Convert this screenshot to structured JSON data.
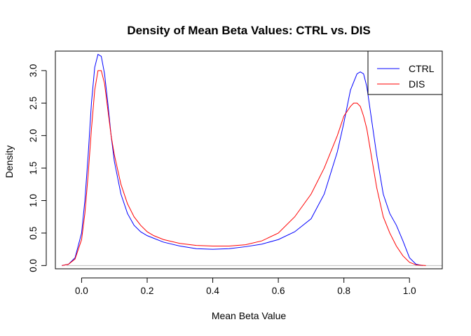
{
  "chart_data": {
    "type": "line",
    "title": "Density of Mean Beta Values: CTRL vs. DIS",
    "xlabel": "Mean Beta Value",
    "ylabel": "Density",
    "xlim": [
      -0.08,
      1.1
    ],
    "ylim": [
      -0.05,
      3.3
    ],
    "xticks": [
      0.0,
      0.2,
      0.4,
      0.6,
      0.8,
      1.0
    ],
    "xtick_labels": [
      "0.0",
      "0.2",
      "0.4",
      "0.6",
      "0.8",
      "1.0"
    ],
    "yticks": [
      0.0,
      0.5,
      1.0,
      1.5,
      2.0,
      2.5,
      3.0
    ],
    "ytick_labels": [
      "0.0",
      "0.5",
      "1.0",
      "1.5",
      "2.0",
      "2.5",
      "3.0"
    ],
    "grid": false,
    "baseline": {
      "y": 0,
      "color": "#bebebe"
    },
    "legend": {
      "position": "top-right"
    },
    "series": [
      {
        "name": "CTRL",
        "color": "#0000ff",
        "x": [
          -0.06,
          -0.04,
          -0.02,
          0.0,
          0.01,
          0.02,
          0.03,
          0.04,
          0.05,
          0.06,
          0.07,
          0.08,
          0.09,
          0.1,
          0.12,
          0.14,
          0.16,
          0.18,
          0.2,
          0.22,
          0.25,
          0.3,
          0.35,
          0.4,
          0.45,
          0.5,
          0.55,
          0.6,
          0.65,
          0.7,
          0.74,
          0.78,
          0.8,
          0.82,
          0.84,
          0.85,
          0.86,
          0.87,
          0.88,
          0.9,
          0.92,
          0.94,
          0.96,
          0.98,
          1.0,
          1.02,
          1.04
        ],
        "y": [
          0.0,
          0.02,
          0.12,
          0.5,
          1.0,
          1.7,
          2.5,
          3.05,
          3.25,
          3.22,
          2.95,
          2.5,
          2.0,
          1.6,
          1.1,
          0.8,
          0.62,
          0.52,
          0.46,
          0.42,
          0.36,
          0.3,
          0.26,
          0.25,
          0.26,
          0.29,
          0.33,
          0.4,
          0.52,
          0.72,
          1.1,
          1.75,
          2.2,
          2.7,
          2.95,
          2.98,
          2.95,
          2.75,
          2.4,
          1.7,
          1.1,
          0.8,
          0.62,
          0.38,
          0.12,
          0.02,
          0.0
        ]
      },
      {
        "name": "DIS",
        "color": "#ff0000",
        "x": [
          -0.06,
          -0.04,
          -0.02,
          0.0,
          0.01,
          0.02,
          0.03,
          0.04,
          0.05,
          0.06,
          0.07,
          0.08,
          0.09,
          0.1,
          0.12,
          0.14,
          0.16,
          0.18,
          0.2,
          0.22,
          0.25,
          0.3,
          0.35,
          0.4,
          0.45,
          0.5,
          0.55,
          0.6,
          0.65,
          0.7,
          0.74,
          0.78,
          0.8,
          0.82,
          0.83,
          0.84,
          0.85,
          0.86,
          0.87,
          0.88,
          0.9,
          0.92,
          0.94,
          0.96,
          0.98,
          1.0,
          1.02,
          1.05
        ],
        "y": [
          0.0,
          0.02,
          0.1,
          0.4,
          0.8,
          1.4,
          2.1,
          2.7,
          3.0,
          3.0,
          2.8,
          2.4,
          2.0,
          1.7,
          1.25,
          0.95,
          0.75,
          0.62,
          0.52,
          0.46,
          0.4,
          0.34,
          0.31,
          0.3,
          0.3,
          0.32,
          0.38,
          0.5,
          0.75,
          1.1,
          1.5,
          2.0,
          2.3,
          2.45,
          2.5,
          2.5,
          2.45,
          2.3,
          2.1,
          1.8,
          1.2,
          0.75,
          0.5,
          0.3,
          0.15,
          0.05,
          0.01,
          0.0
        ]
      }
    ]
  }
}
